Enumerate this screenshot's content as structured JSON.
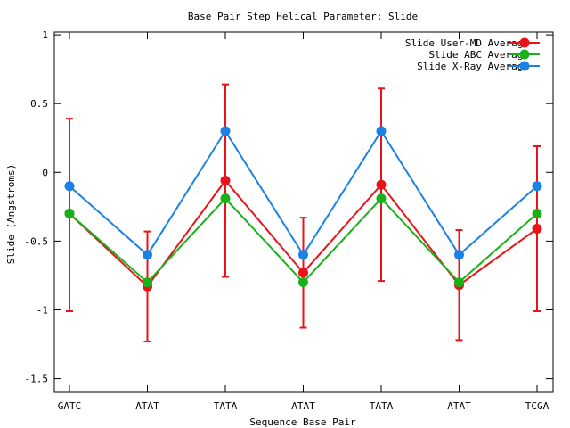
{
  "chart_data": {
    "type": "line",
    "title": "Base Pair Step Helical Parameter: Slide",
    "xlabel": "Sequence Base Pair",
    "ylabel": "Slide (Angstroms)",
    "categories": [
      "GATC",
      "ATAT",
      "TATA",
      "ATAT",
      "TATA",
      "ATAT",
      "TCGA"
    ],
    "ylim": [
      -1.6,
      1.02
    ],
    "yticks": [
      1,
      0.5,
      0,
      -0.5,
      -1,
      -1.5
    ],
    "ytick_labels": [
      "1",
      "0.5",
      "0",
      "-0.5",
      "-1",
      "-1.5"
    ],
    "grid": false,
    "legend_position": "top-right",
    "series": [
      {
        "name": "Slide User-MD Average",
        "color": "#e8141a",
        "values": [
          -0.3,
          -0.83,
          -0.06,
          -0.73,
          -0.09,
          -0.82,
          -0.41
        ],
        "error_low": [
          -1.01,
          -1.23,
          -0.76,
          -1.13,
          -0.79,
          -1.22,
          -1.01
        ],
        "error_high": [
          0.39,
          -0.43,
          0.64,
          -0.33,
          0.61,
          -0.42,
          0.19
        ]
      },
      {
        "name": "Slide ABC Average",
        "color": "#17b217",
        "values": [
          -0.3,
          -0.8,
          -0.19,
          -0.8,
          -0.19,
          -0.8,
          -0.3
        ]
      },
      {
        "name": "Slide X-Ray Average",
        "color": "#1a82e6",
        "values": [
          -0.1,
          -0.6,
          0.3,
          -0.6,
          0.3,
          -0.6,
          -0.1
        ]
      }
    ]
  }
}
